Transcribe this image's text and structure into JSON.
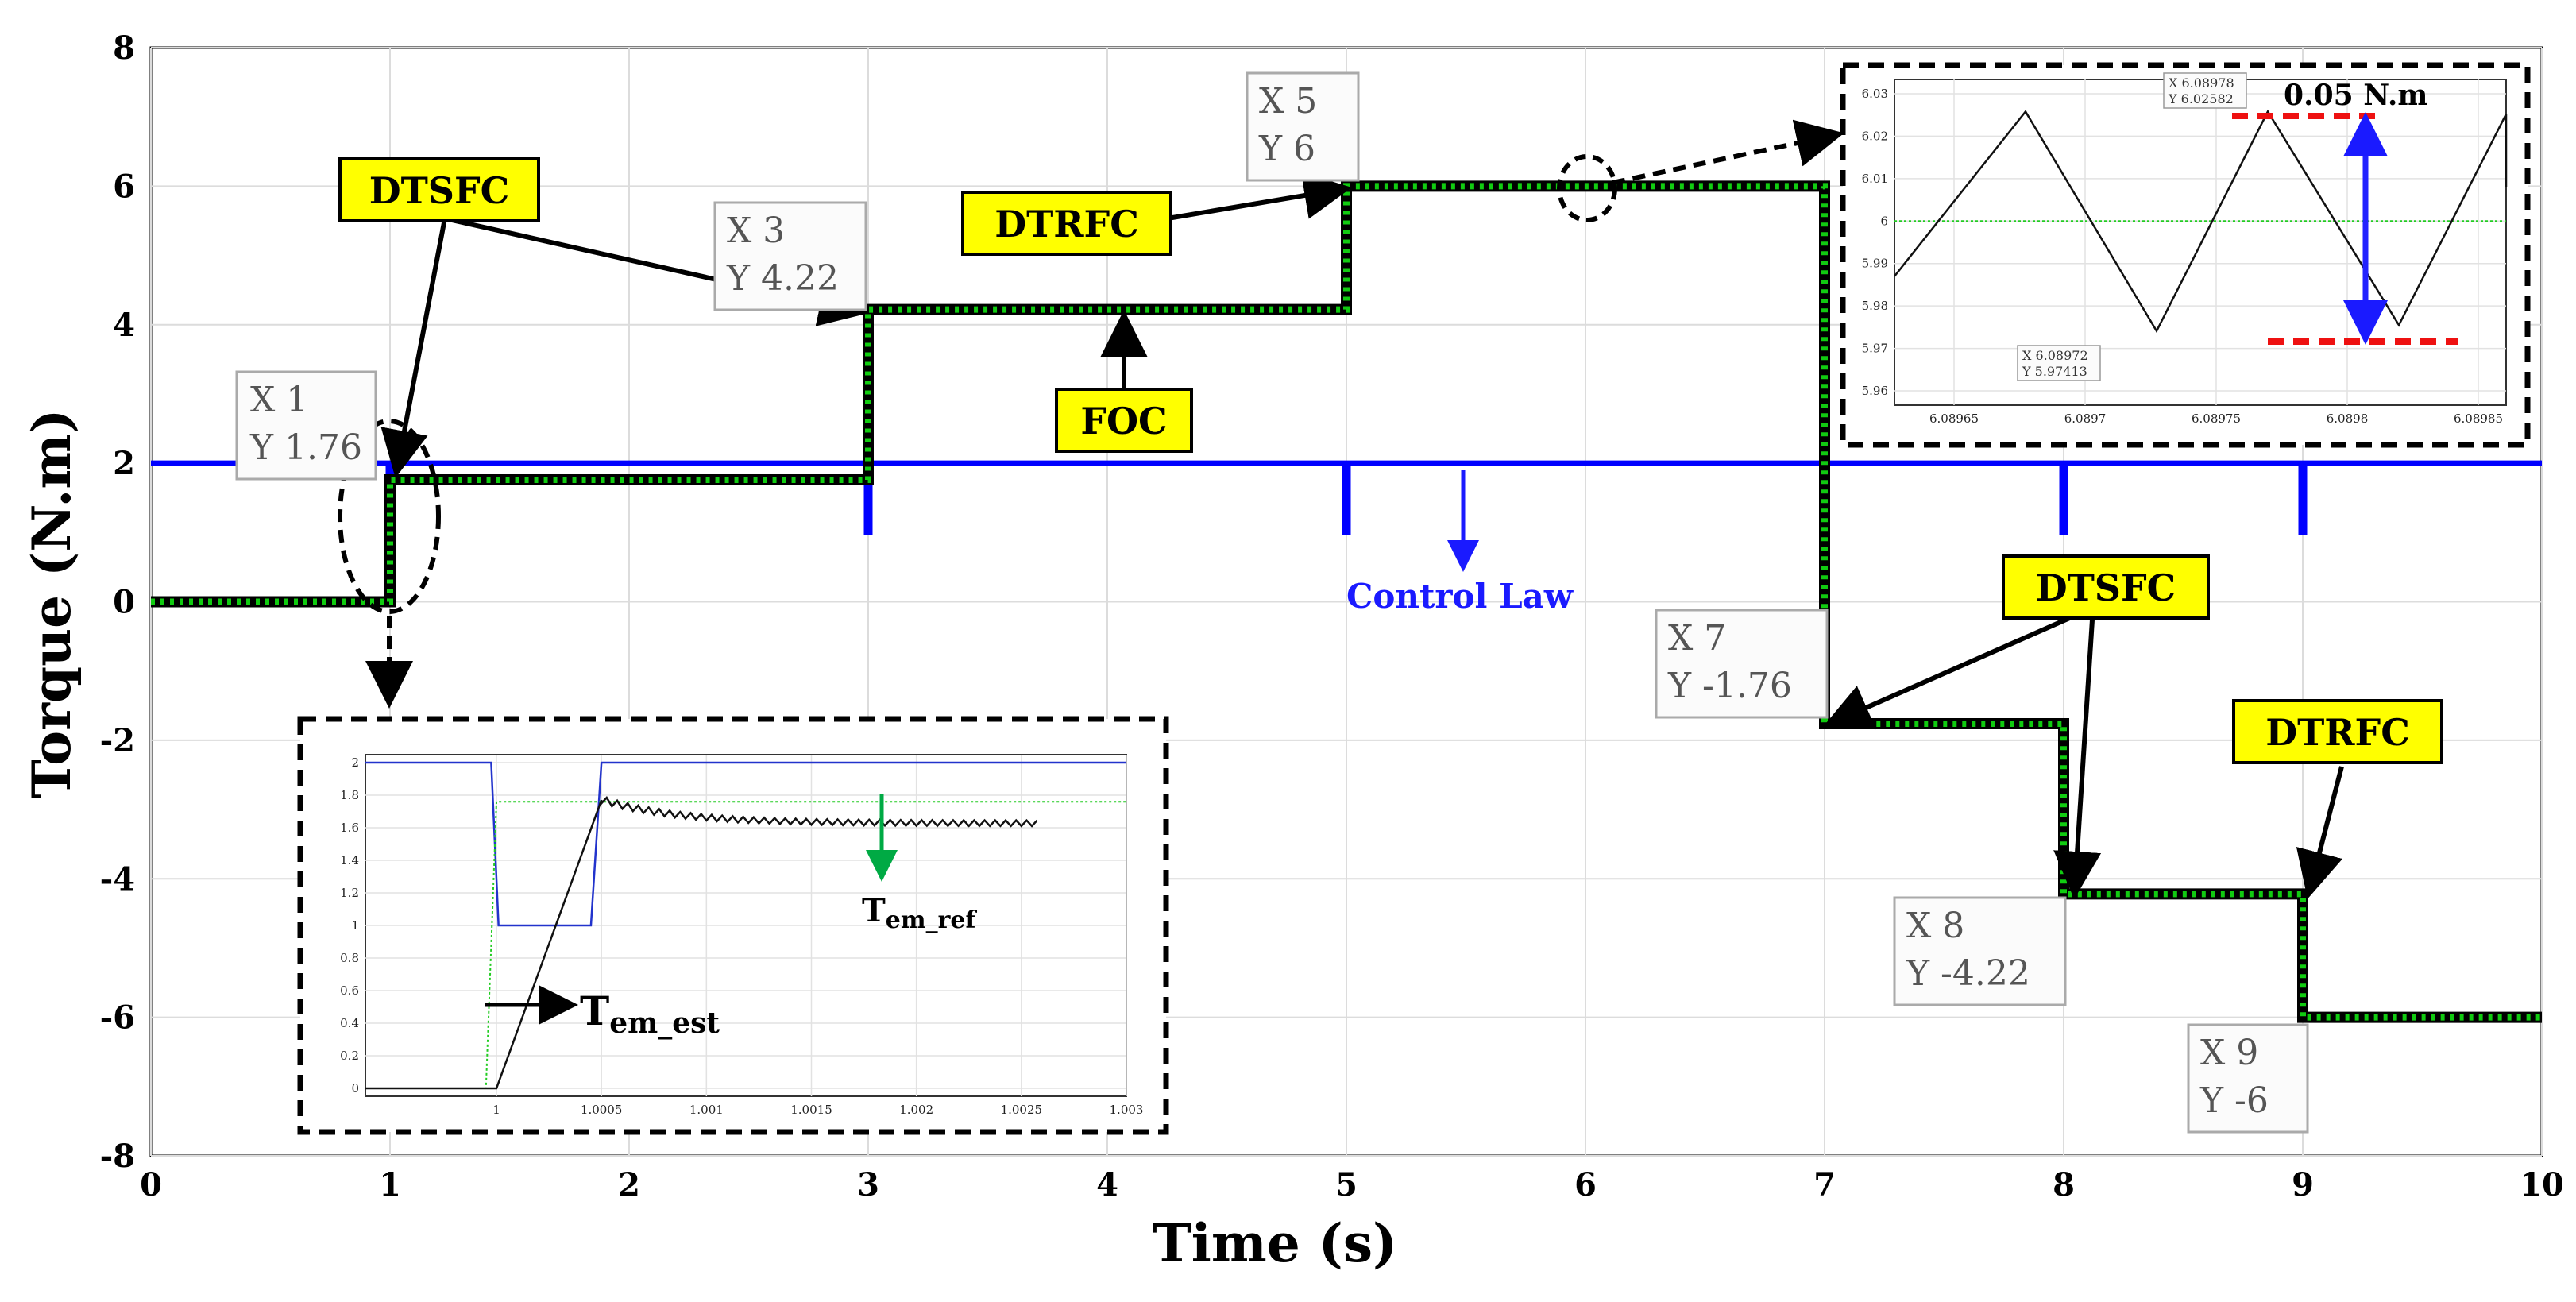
{
  "chart_data": {
    "type": "line",
    "xlabel": "Time (s)",
    "ylabel": "Torque (N.m)",
    "xlim": [
      0,
      10
    ],
    "ylim": [
      -8,
      8
    ],
    "xticks": [
      0,
      1,
      2,
      3,
      4,
      5,
      6,
      7,
      8,
      9,
      10
    ],
    "yticks": [
      -8,
      -6,
      -4,
      -2,
      0,
      2,
      4,
      6,
      8
    ],
    "grid": true,
    "series": [
      {
        "color": "#0000ff",
        "baseline": 2,
        "dips": [
          {
            "x": 1,
            "value": 1
          },
          {
            "x": 3,
            "value": 1
          },
          {
            "x": 5,
            "value": 1
          },
          {
            "x": 7,
            "value": 1
          },
          {
            "x": 8,
            "value": 1
          },
          {
            "x": 9,
            "value": 1
          }
        ]
      },
      {
        "color": "#11cc11",
        "steps": [
          [
            0,
            0
          ],
          [
            1,
            1.76
          ],
          [
            3,
            4.22
          ],
          [
            5,
            6
          ],
          [
            7,
            -1.76
          ],
          [
            8,
            -4.22
          ],
          [
            9,
            -6
          ],
          [
            10,
            -6
          ]
        ]
      }
    ],
    "datatips": [
      {
        "x_text": "X 1",
        "y_text": "Y 1.76"
      },
      {
        "x_text": "X 3",
        "y_text": "Y 4.22"
      },
      {
        "x_text": "X 5",
        "y_text": "Y 6"
      },
      {
        "x_text": "X 7",
        "y_text": "Y -1.76"
      },
      {
        "x_text": "X 8",
        "y_text": "Y -4.22"
      },
      {
        "x_text": "X 9",
        "y_text": "Y -6"
      }
    ],
    "callouts": [
      "DTSFC",
      "DTRFC",
      "FOC",
      "DTSFC",
      "DTRFC"
    ],
    "control_law_label": "Control Law",
    "inset_bottom": {
      "xticks": [
        "1",
        "1.0005",
        "1.001",
        "1.0015",
        "1.002",
        "1.0025",
        "1.003"
      ],
      "yticks": [
        "0",
        "0.2",
        "0.4",
        "0.6",
        "0.8",
        "1",
        "1.2",
        "1.4",
        "1.6",
        "1.8",
        "2"
      ],
      "label_est_main": "T",
      "label_est_sub": "em_est",
      "label_ref_main": "T",
      "label_ref_sub": "em_ref"
    },
    "inset_top": {
      "xticks": [
        "6.08965",
        "6.0897",
        "6.08975",
        "6.0898",
        "6.08985"
      ],
      "yticks": [
        "6.03",
        "6.02",
        "6.01",
        "6",
        "5.99",
        "5.98",
        "5.97",
        "5.96"
      ],
      "tip_peak": {
        "x_text": "X 6.08978",
        "y_text": "Y 6.02582"
      },
      "tip_valley": {
        "x_text": "X 6.08972",
        "y_text": "Y 5.97413"
      },
      "ripple_label": "0.05 N.m"
    }
  }
}
